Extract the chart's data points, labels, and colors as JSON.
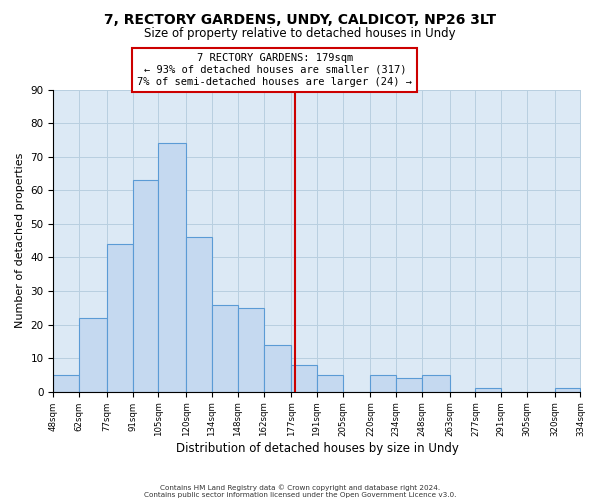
{
  "title1": "7, RECTORY GARDENS, UNDY, CALDICOT, NP26 3LT",
  "title2": "Size of property relative to detached houses in Undy",
  "xlabel": "Distribution of detached houses by size in Undy",
  "ylabel": "Number of detached properties",
  "bar_values": [
    5,
    22,
    44,
    63,
    74,
    46,
    26,
    25,
    14,
    8,
    5,
    0,
    5,
    4,
    5,
    0,
    1,
    0,
    0,
    1
  ],
  "bar_edges": [
    48,
    62,
    77,
    91,
    105,
    120,
    134,
    148,
    162,
    177,
    191,
    205,
    220,
    234,
    248,
    263,
    277,
    291,
    305,
    320,
    334
  ],
  "tick_labels": [
    "48sqm",
    "62sqm",
    "77sqm",
    "91sqm",
    "105sqm",
    "120sqm",
    "134sqm",
    "148sqm",
    "162sqm",
    "177sqm",
    "191sqm",
    "205sqm",
    "220sqm",
    "234sqm",
    "248sqm",
    "263sqm",
    "277sqm",
    "291sqm",
    "305sqm",
    "320sqm",
    "334sqm"
  ],
  "bar_color": "#c5d9f0",
  "bar_edge_color": "#5b9bd5",
  "vline_x": 179,
  "vline_color": "#cc0000",
  "annotation_title": "7 RECTORY GARDENS: 179sqm",
  "annotation_line1": "← 93% of detached houses are smaller (317)",
  "annotation_line2": "7% of semi-detached houses are larger (24) →",
  "annotation_box_color": "#ffffff",
  "annotation_box_edge": "#cc0000",
  "ylim": [
    0,
    90
  ],
  "yticks": [
    0,
    10,
    20,
    30,
    40,
    50,
    60,
    70,
    80,
    90
  ],
  "footer1": "Contains HM Land Registry data © Crown copyright and database right 2024.",
  "footer2": "Contains public sector information licensed under the Open Government Licence v3.0.",
  "bg_color": "#ffffff",
  "ax_bg_color": "#dce9f5",
  "grid_color": "#b8cfe0"
}
